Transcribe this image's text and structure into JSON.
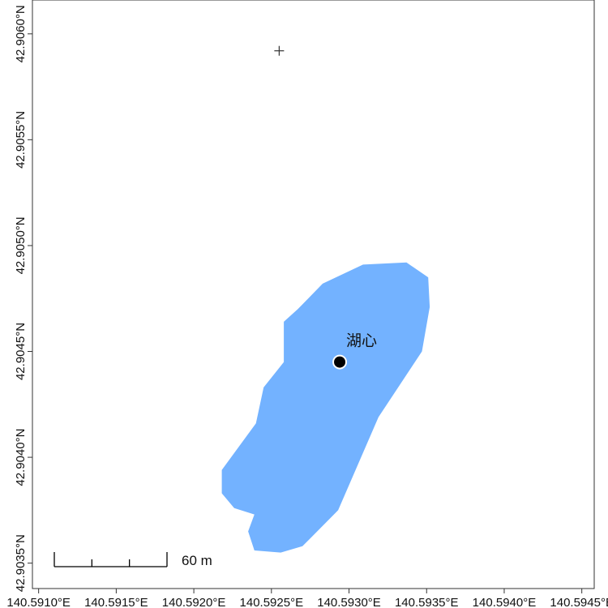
{
  "map": {
    "x_ticks": [
      {
        "lon": 140.591,
        "label": "140.5910°E"
      },
      {
        "lon": 140.5915,
        "label": "140.5915°E"
      },
      {
        "lon": 140.592,
        "label": "140.5920°E"
      },
      {
        "lon": 140.5925,
        "label": "140.5925°E"
      },
      {
        "lon": 140.593,
        "label": "140.5930°E"
      },
      {
        "lon": 140.5935,
        "label": "140.5935°E"
      },
      {
        "lon": 140.594,
        "label": "140.5940°E"
      },
      {
        "lon": 140.5945,
        "label": "140.5945°E"
      }
    ],
    "y_ticks": [
      {
        "lat": 42.906,
        "label": "42.9060°N"
      },
      {
        "lat": 42.9055,
        "label": "42.9055°N"
      },
      {
        "lat": 42.905,
        "label": "42.9050°N"
      },
      {
        "lat": 42.9045,
        "label": "42.9045°N"
      },
      {
        "lat": 42.904,
        "label": "42.9040°N"
      },
      {
        "lat": 42.9035,
        "label": "42.9035°N"
      }
    ],
    "lon_range": [
      140.59096,
      140.59458
    ],
    "lat_range": [
      42.90338,
      42.90616
    ],
    "lake": {
      "color": "#73b2ff",
      "outline": [
        [
          140.59258,
          42.90464
        ],
        [
          140.59267,
          42.9047
        ],
        [
          140.59283,
          42.90482
        ],
        [
          140.59309,
          42.90491
        ],
        [
          140.59337,
          42.90492
        ],
        [
          140.59351,
          42.90485
        ],
        [
          140.59352,
          42.90471
        ],
        [
          140.59347,
          42.9045
        ],
        [
          140.59319,
          42.90419
        ],
        [
          140.59293,
          42.90375
        ],
        [
          140.5927,
          42.90358
        ],
        [
          140.59256,
          42.90355
        ],
        [
          140.59239,
          42.90356
        ],
        [
          140.59235,
          42.90365
        ],
        [
          140.59239,
          42.90373
        ],
        [
          140.59226,
          42.90376
        ],
        [
          140.59218,
          42.90383
        ],
        [
          140.59218,
          42.90394
        ],
        [
          140.5924,
          42.90416
        ],
        [
          140.59245,
          42.90433
        ],
        [
          140.59258,
          42.90445
        ]
      ]
    },
    "center_point": {
      "lon": 140.59294,
      "lat": 42.90445,
      "label": "湖心"
    },
    "cross_marker": {
      "lon": 140.59255,
      "lat": 42.90592
    },
    "scale_bar": {
      "distance_m": 60,
      "label": "60 m"
    }
  }
}
